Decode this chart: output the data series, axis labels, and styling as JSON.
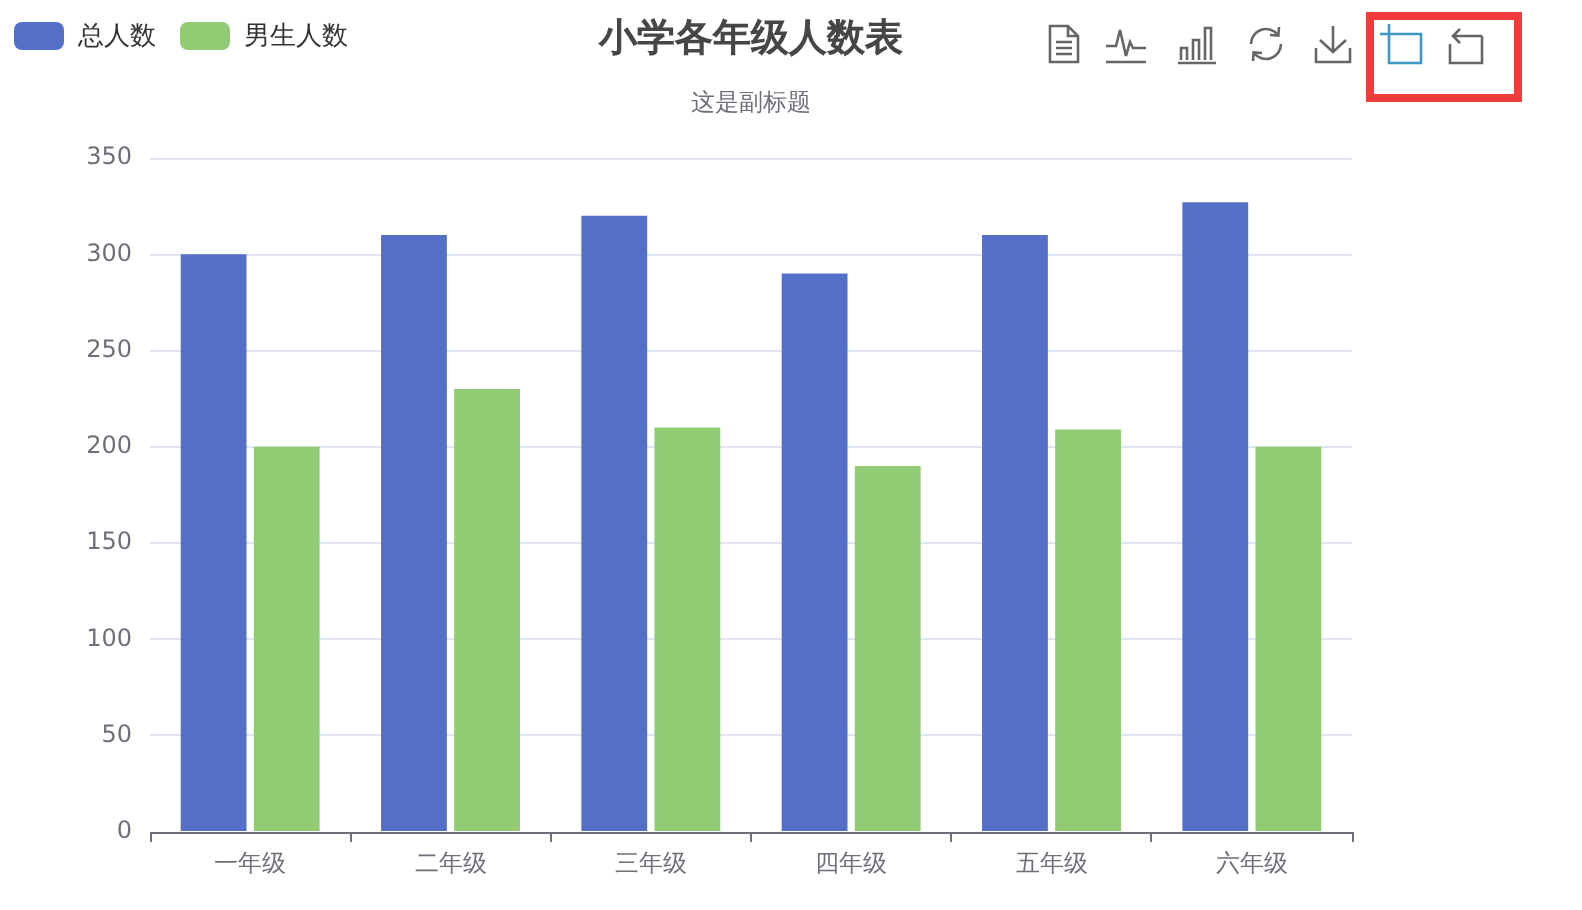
{
  "chart_data": {
    "type": "bar",
    "title": "小学各年级人数表",
    "subtitle": "这是副标题",
    "categories": [
      "一年级",
      "二年级",
      "三年级",
      "四年级",
      "五年级",
      "六年级"
    ],
    "series": [
      {
        "name": "总人数",
        "color": "#5470c6",
        "values": [
          300,
          310,
          320,
          290,
          310,
          327
        ]
      },
      {
        "name": "男生人数",
        "color": "#91cc75",
        "values": [
          200,
          230,
          210,
          190,
          209,
          200
        ]
      }
    ],
    "ylim": [
      0,
      350
    ],
    "yticks": [
      0,
      50,
      100,
      150,
      200,
      250,
      300,
      350
    ],
    "grid": "y",
    "legend": "top left"
  }
}
